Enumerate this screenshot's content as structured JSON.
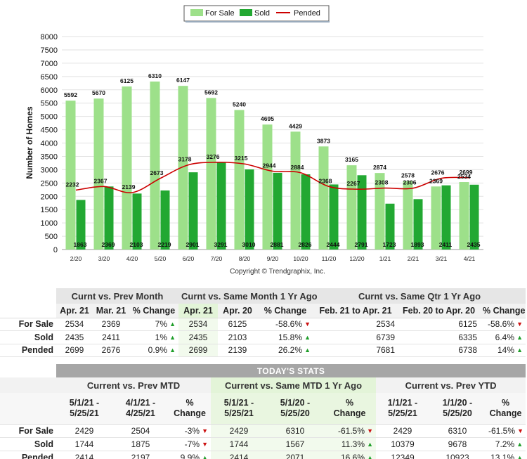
{
  "chart_data": {
    "type": "bar",
    "categories": [
      "2/20",
      "3/20",
      "4/20",
      "5/20",
      "6/20",
      "7/20",
      "8/20",
      "9/20",
      "10/20",
      "11/20",
      "12/20",
      "1/21",
      "2/21",
      "3/21",
      "4/21"
    ],
    "series": [
      {
        "name": "For Sale",
        "type": "bar",
        "color": "#9de08a",
        "values": [
          5592,
          5670,
          6125,
          6310,
          6147,
          5692,
          5240,
          4695,
          4429,
          3873,
          3165,
          2874,
          2578,
          2369,
          2534
        ]
      },
      {
        "name": "Sold",
        "type": "bar",
        "color": "#22a832",
        "values": [
          1863,
          2369,
          2103,
          2219,
          2901,
          3291,
          3010,
          2881,
          2826,
          2444,
          2791,
          1723,
          1893,
          2411,
          2435
        ]
      },
      {
        "name": "Pended",
        "type": "line",
        "color": "#cc0000",
        "values": [
          2232,
          2367,
          2139,
          2673,
          3178,
          3276,
          3215,
          2944,
          2884,
          2368,
          2267,
          2308,
          2306,
          2676,
          2699
        ]
      }
    ],
    "ylabel": "Number of Homes",
    "ylim": [
      0,
      8000
    ],
    "yticks": [
      0,
      500,
      1000,
      1500,
      2000,
      2500,
      3000,
      3500,
      4000,
      4500,
      5000,
      5500,
      6000,
      6500,
      7000,
      7500,
      8000
    ],
    "grid": true,
    "legend": "top-center",
    "copyright": "Copyright © Trendgraphix, Inc."
  },
  "table1": {
    "groups": [
      "Curnt vs. Prev Month",
      "Curnt vs. Same Month 1 Yr Ago",
      "Curnt vs. Same Qtr 1 Yr Ago"
    ],
    "columns": [
      "Apr. 21",
      "Mar. 21",
      "% Change",
      "Apr. 21",
      "Apr. 20",
      "% Change",
      "Feb. 21 to Apr. 21",
      "Feb. 20 to Apr. 20",
      "% Change"
    ],
    "rows": [
      {
        "label": "For Sale",
        "cells": [
          "2534",
          "2369",
          "7%",
          "2534",
          "6125",
          "-58.6%",
          "2534",
          "6125",
          "-58.6%"
        ],
        "dirs": [
          "up",
          "down",
          "down"
        ]
      },
      {
        "label": "Sold",
        "cells": [
          "2435",
          "2411",
          "1%",
          "2435",
          "2103",
          "15.8%",
          "6739",
          "6335",
          "6.4%"
        ],
        "dirs": [
          "up",
          "up",
          "up"
        ]
      },
      {
        "label": "Pended",
        "cells": [
          "2699",
          "2676",
          "0.9%",
          "2699",
          "2139",
          "26.2%",
          "7681",
          "6738",
          "14%"
        ],
        "dirs": [
          "up",
          "up",
          "up"
        ]
      }
    ]
  },
  "table2": {
    "title": "TODAY'S STATS",
    "groups": [
      "Current vs. Prev MTD",
      "Current vs. Same MTD 1 Yr Ago",
      "Current vs. Prev YTD"
    ],
    "columns": [
      [
        "5/1/21 -",
        "5/25/21"
      ],
      [
        "4/1/21 -",
        "4/25/21"
      ],
      [
        "%",
        "Change"
      ],
      [
        "5/1/21 -",
        "5/25/21"
      ],
      [
        "5/1/20 -",
        "5/25/20"
      ],
      [
        "%",
        "Change"
      ],
      [
        "1/1/21 -",
        "5/25/21"
      ],
      [
        "1/1/20 -",
        "5/25/20"
      ],
      [
        "%",
        "Change"
      ]
    ],
    "rows": [
      {
        "label": "For Sale",
        "cells": [
          "2429",
          "2504",
          "-3%",
          "2429",
          "6310",
          "-61.5%",
          "2429",
          "6310",
          "-61.5%"
        ],
        "dirs": [
          "down",
          "down",
          "down"
        ]
      },
      {
        "label": "Sold",
        "cells": [
          "1744",
          "1875",
          "-7%",
          "1744",
          "1567",
          "11.3%",
          "10379",
          "9678",
          "7.2%"
        ],
        "dirs": [
          "down",
          "up",
          "up"
        ]
      },
      {
        "label": "Pended",
        "cells": [
          "2414",
          "2197",
          "9.9%",
          "2414",
          "2071",
          "16.6%",
          "12349",
          "10923",
          "13.1%"
        ],
        "dirs": [
          "up",
          "up",
          "up"
        ]
      }
    ]
  }
}
